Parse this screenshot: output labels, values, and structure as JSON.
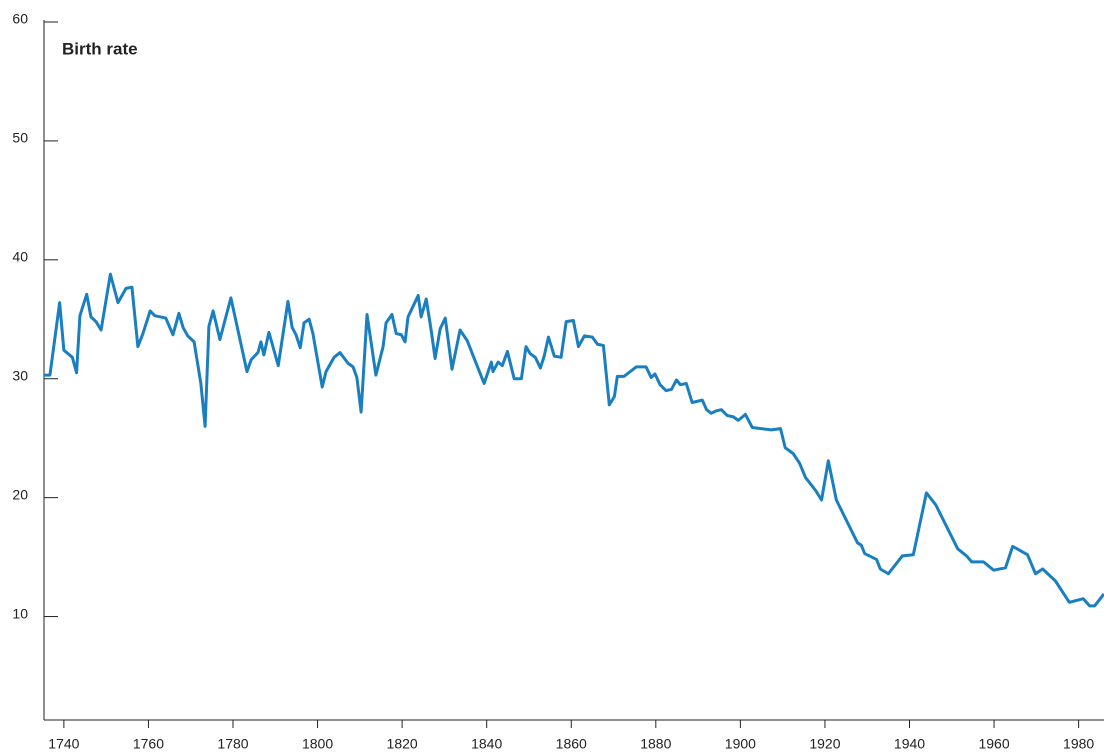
{
  "chart_data": {
    "type": "line",
    "y_label": "Birth rate",
    "color": "#1a7fc1",
    "x": [
      1735.3,
      1736.7,
      1739,
      1740,
      1742,
      1743,
      1743.8,
      1745.4,
      1746.4,
      1747.6,
      1748.8,
      1751,
      1752.8,
      1754.7,
      1756.1,
      1757.5,
      1758.7,
      1760.4,
      1761.5,
      1764.1,
      1765.8,
      1767.2,
      1768.2,
      1769.3,
      1770.8,
      1772.4,
      1773.4,
      1774.3,
      1775.3,
      1776.9,
      1779.5,
      1783.3,
      1784.3,
      1785.9,
      1786.6,
      1787.3,
      1788.5,
      1790.7,
      1791.8,
      1793,
      1794,
      1794.9,
      1795.9,
      1796.8,
      1798,
      1798.9,
      1801.1,
      1802,
      1803.9,
      1805.3,
      1807.2,
      1808.4,
      1809.3,
      1810.3,
      1811.7,
      1813.8,
      1815.5,
      1816.2,
      1817.6,
      1818.6,
      1819.8,
      1820.7,
      1821.4,
      1822.6,
      1823.8,
      1824.5,
      1825.7,
      1826.9,
      1827.8,
      1829,
      1830.2,
      1831.8,
      1833.7,
      1835.4,
      1837.5,
      1839.4,
      1841.1,
      1841.5,
      1842.7,
      1843.7,
      1844.9,
      1846.5,
      1848.2,
      1849.3,
      1850.3,
      1851.5,
      1852.7,
      1853.6,
      1854.6,
      1856,
      1857.6,
      1858.8,
      1860.5,
      1861.7,
      1863.1,
      1865,
      1866.2,
      1867.6,
      1869,
      1870.2,
      1870.9,
      1872.5,
      1875.4,
      1877.7,
      1878.9,
      1879.8,
      1881,
      1882.4,
      1883.7,
      1884.9,
      1885.8,
      1887.2,
      1888.6,
      1891,
      1892,
      1893.1,
      1894.3,
      1895.5,
      1896.9,
      1898.3,
      1899.5,
      1901.2,
      1902.8,
      1907.3,
      1909.5,
      1910.6,
      1912.5,
      1914,
      1915.4,
      1917.8,
      1919.2,
      1920.8,
      1922.7,
      1927.7,
      1928.6,
      1929.4,
      1932.2,
      1933.1,
      1935,
      1938.3,
      1940.9,
      1944,
      1946.2,
      1951.4,
      1953.5,
      1954.7,
      1957.5,
      1959.9,
      1962.7,
      1964.4,
      1967.9,
      1969.8,
      1971.5,
      1974.5,
      1977.8,
      1981.1,
      1982.6,
      1983.8,
      1986
    ],
    "values": [
      30.3,
      30.3,
      36.4,
      32.4,
      31.8,
      30.5,
      35.3,
      37.1,
      35.2,
      34.8,
      34.1,
      38.8,
      36.4,
      37.6,
      37.7,
      32.7,
      33.8,
      35.7,
      35.3,
      35.1,
      33.7,
      35.5,
      34.3,
      33.6,
      33.1,
      29.6,
      26.0,
      34.4,
      35.7,
      33.3,
      36.8,
      30.6,
      31.6,
      32.2,
      33.1,
      32,
      33.9,
      31.1,
      33.7,
      36.5,
      34.3,
      33.7,
      32.6,
      34.7,
      35,
      33.8,
      29.3,
      30.6,
      31.8,
      32.2,
      31.3,
      31,
      30.1,
      27.2,
      35.4,
      30.3,
      32.7,
      34.7,
      35.4,
      33.8,
      33.7,
      33.1,
      35.2,
      36.1,
      37,
      35.2,
      36.7,
      34,
      31.7,
      34.2,
      35.1,
      30.8,
      34.1,
      33.2,
      31.3,
      29.6,
      31.4,
      30.6,
      31.4,
      31.1,
      32.3,
      30,
      30,
      32.7,
      32.1,
      31.8,
      30.9,
      31.9,
      33.5,
      31.9,
      31.8,
      34.8,
      34.9,
      32.7,
      33.6,
      33.5,
      32.9,
      32.8,
      27.8,
      28.5,
      30.2,
      30.2,
      31,
      31,
      30.1,
      30.4,
      29.5,
      29,
      29.1,
      29.9,
      29.5,
      29.6,
      28,
      28.2,
      27.4,
      27.1,
      27.3,
      27.4,
      26.9,
      26.8,
      26.5,
      27,
      25.9,
      25.7,
      25.8,
      24.2,
      23.7,
      22.9,
      21.7,
      20.6,
      19.8,
      23.1,
      19.8,
      16.2,
      16,
      15.3,
      14.8,
      14,
      13.6,
      15.1,
      15.2,
      20.4,
      19.4,
      15.7,
      15.1,
      14.6,
      14.6,
      13.9,
      14.1,
      15.9,
      15.2,
      13.6,
      14,
      13,
      11.2,
      11.5,
      10.9,
      10.9,
      11.9
    ],
    "xlim": [
      1735.3,
      1986
    ],
    "xticks": [
      1740,
      1760,
      1780,
      1800,
      1820,
      1840,
      1860,
      1880,
      1900,
      1920,
      1940,
      1960,
      1980
    ],
    "ylim": [
      1.3,
      60
    ],
    "yticks": [
      10,
      20,
      30,
      40,
      50,
      60
    ]
  }
}
